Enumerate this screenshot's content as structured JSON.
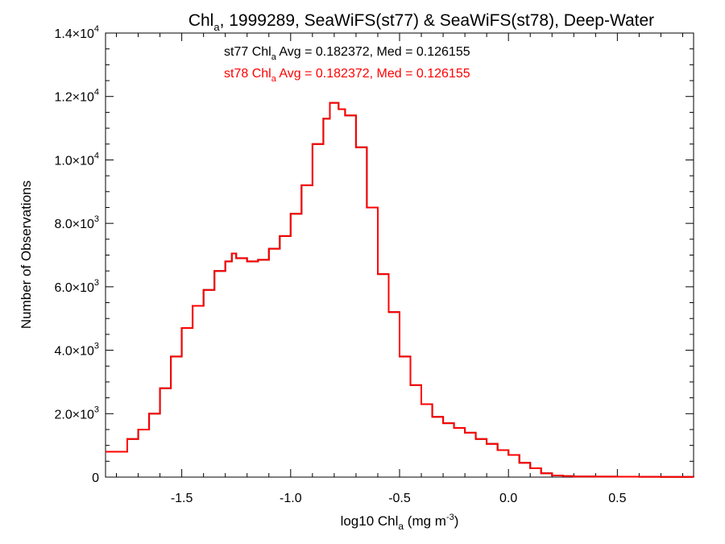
{
  "chart_data": {
    "type": "line",
    "title": {
      "prefix": "Chl",
      "sub": "a",
      "rest": ", 1999289, SeaWiFS(st77) & SeaWiFS(st78), Deep-Water"
    },
    "xlabel": {
      "prefix": "log10 Chl",
      "sub": "a",
      "mid": " (mg m",
      "sup": "-3",
      "suffix": ")"
    },
    "ylabel": "Number of Observations",
    "xlim": [
      -1.85,
      0.85
    ],
    "ylim": [
      0,
      14000
    ],
    "x_ticks": [
      -1.5,
      -1.0,
      -0.5,
      0.0,
      0.5
    ],
    "x_tick_labels": [
      "-1.5",
      "-1.0",
      "-0.5",
      "0.0",
      "0.5"
    ],
    "y_ticks": [
      0,
      2000,
      4000,
      6000,
      8000,
      10000,
      12000,
      14000
    ],
    "y_tick_labels": [
      {
        "mant": "0",
        "exp": ""
      },
      {
        "mant": "2.0×10",
        "exp": "3"
      },
      {
        "mant": "4.0×10",
        "exp": "3"
      },
      {
        "mant": "6.0×10",
        "exp": "3"
      },
      {
        "mant": "8.0×10",
        "exp": "3"
      },
      {
        "mant": "1.0×10",
        "exp": "4"
      },
      {
        "mant": "1.2×10",
        "exp": "4"
      },
      {
        "mant": "1.4×10",
        "exp": "4"
      }
    ],
    "annotations": [
      {
        "prefix": "st77 Chl",
        "sub": "a",
        "rest": " Avg = 0.182372, Med = 0.126155",
        "color": "#000000"
      },
      {
        "prefix": "st78 Chl",
        "sub": "a",
        "rest": " Avg = 0.182372, Med = 0.126155",
        "color": "#ff0000"
      }
    ],
    "series": [
      {
        "color": "#000000",
        "x": [
          -1.85,
          -1.75,
          -1.7,
          -1.65,
          -1.6,
          -1.55,
          -1.5,
          -1.45,
          -1.4,
          -1.35,
          -1.3,
          -1.27,
          -1.25,
          -1.2,
          -1.15,
          -1.1,
          -1.05,
          -1.0,
          -0.95,
          -0.9,
          -0.85,
          -0.82,
          -0.8,
          -0.78,
          -0.75,
          -0.7,
          -0.65,
          -0.6,
          -0.55,
          -0.5,
          -0.45,
          -0.4,
          -0.35,
          -0.3,
          -0.25,
          -0.2,
          -0.15,
          -0.1,
          -0.05,
          0.0,
          0.05,
          0.1,
          0.15,
          0.2,
          0.25,
          0.3,
          0.4,
          0.5,
          0.6,
          0.7,
          0.85
        ],
        "y": [
          800,
          1200,
          1500,
          2000,
          2800,
          3800,
          4700,
          5400,
          5900,
          6500,
          6800,
          7050,
          6900,
          6800,
          6850,
          7200,
          7600,
          8300,
          9200,
          10500,
          11300,
          11800,
          11800,
          11600,
          11400,
          10400,
          8500,
          6400,
          5200,
          3800,
          2900,
          2300,
          1900,
          1700,
          1550,
          1400,
          1200,
          1050,
          850,
          700,
          450,
          280,
          120,
          50,
          30,
          20,
          15,
          12,
          10,
          8,
          5
        ]
      },
      {
        "color": "#ff0000",
        "x": [
          -1.85,
          -1.75,
          -1.7,
          -1.65,
          -1.6,
          -1.55,
          -1.5,
          -1.45,
          -1.4,
          -1.35,
          -1.3,
          -1.27,
          -1.25,
          -1.2,
          -1.15,
          -1.1,
          -1.05,
          -1.0,
          -0.95,
          -0.9,
          -0.85,
          -0.82,
          -0.8,
          -0.78,
          -0.75,
          -0.7,
          -0.65,
          -0.6,
          -0.55,
          -0.5,
          -0.45,
          -0.4,
          -0.35,
          -0.3,
          -0.25,
          -0.2,
          -0.15,
          -0.1,
          -0.05,
          0.0,
          0.05,
          0.1,
          0.15,
          0.2,
          0.25,
          0.3,
          0.4,
          0.5,
          0.6,
          0.7,
          0.85
        ],
        "y": [
          800,
          1200,
          1500,
          2000,
          2800,
          3800,
          4700,
          5400,
          5900,
          6500,
          6800,
          7050,
          6900,
          6800,
          6850,
          7200,
          7600,
          8300,
          9200,
          10500,
          11300,
          11800,
          11800,
          11600,
          11400,
          10400,
          8500,
          6400,
          5200,
          3800,
          2900,
          2300,
          1900,
          1700,
          1550,
          1400,
          1200,
          1050,
          850,
          700,
          450,
          280,
          120,
          50,
          30,
          20,
          15,
          12,
          10,
          8,
          5
        ]
      }
    ],
    "grid": false,
    "legend": "none"
  }
}
